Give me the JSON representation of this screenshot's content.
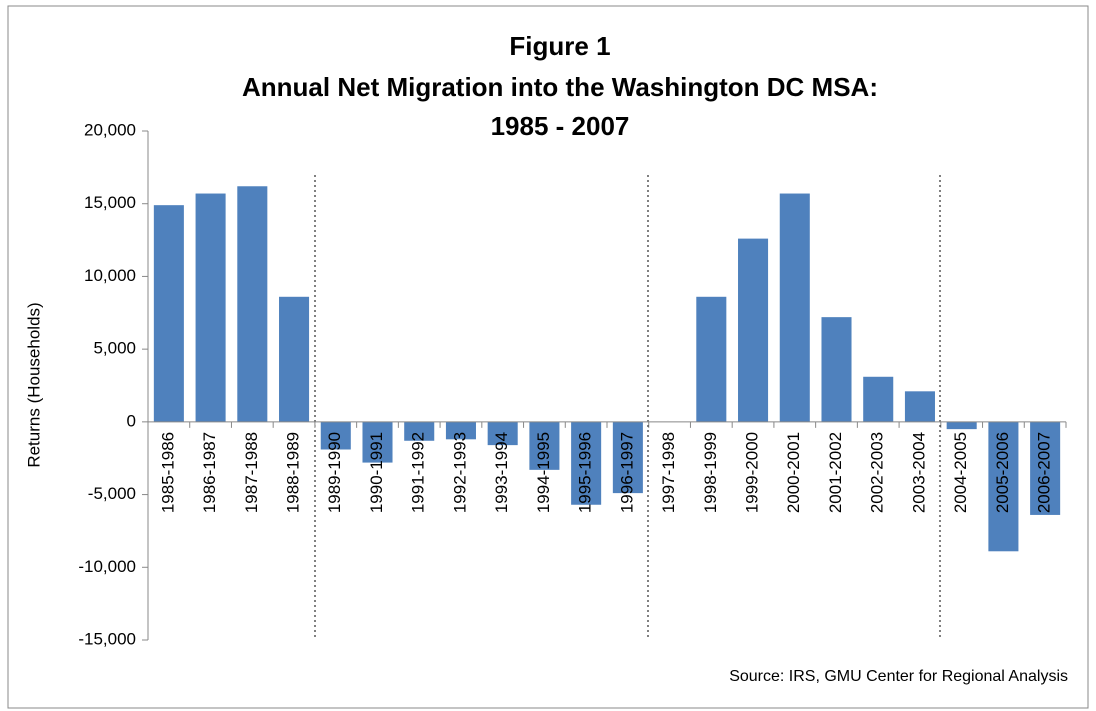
{
  "chart_data": {
    "type": "bar",
    "title": [
      "Figure 1",
      "Annual Net Migration into the Washington DC MSA:",
      "1985 - 2007"
    ],
    "y_label": "Returns (Households)",
    "source": "Source: IRS, GMU Center for Regional Analysis",
    "categories": [
      "1985-1986",
      "1986-1987",
      "1987-1988",
      "1988-1989",
      "1989-1990",
      "1990-1991",
      "1991-1992",
      "1992-1993",
      "1993-1994",
      "1994-1995",
      "1995-1996",
      "1996-1997",
      "1997-1998",
      "1998-1999",
      "1999-2000",
      "2000-2001",
      "2001-2002",
      "2002-2003",
      "2003-2004",
      "2004-2005",
      "2005-2006",
      "2006-2007"
    ],
    "values": [
      14900,
      15700,
      16200,
      8600,
      -1900,
      -2800,
      -1300,
      -1200,
      -1600,
      -3300,
      -5700,
      -4900,
      0,
      8600,
      12600,
      15700,
      7200,
      3100,
      2100,
      -500,
      -8900,
      -6400
    ],
    "color": "#4f81bd",
    "ylim": [
      -15000,
      20000
    ],
    "yticks": [
      {
        "value": -15000,
        "label": "-15,000"
      },
      {
        "value": -10000,
        "label": "-10,000"
      },
      {
        "value": -5000,
        "label": "-5,000"
      },
      0,
      {
        "value": 5000,
        "label": "5,000"
      },
      {
        "value": 10000,
        "label": "10,000"
      },
      {
        "value": 15000,
        "label": "15,000"
      },
      {
        "value": 20000,
        "label": "20,000"
      }
    ],
    "grid": false
  }
}
